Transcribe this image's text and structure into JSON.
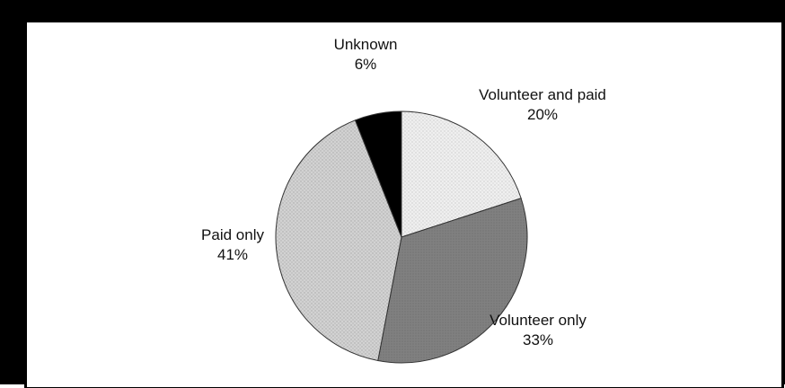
{
  "chart_data": {
    "type": "pie",
    "slices": [
      {
        "label": "Volunteer and paid",
        "pct_label": "20%",
        "value": 20,
        "color": "#ececec"
      },
      {
        "label": "Volunteer only",
        "pct_label": "33%",
        "value": 33,
        "color": "#7e7e7e"
      },
      {
        "label": "Paid only",
        "pct_label": "41%",
        "value": 41,
        "color": "#cdcdcd"
      },
      {
        "label": "Unknown",
        "pct_label": "6%",
        "value": 6,
        "color": "#000000"
      }
    ],
    "start": "12 o'clock",
    "direction": "clockwise"
  }
}
